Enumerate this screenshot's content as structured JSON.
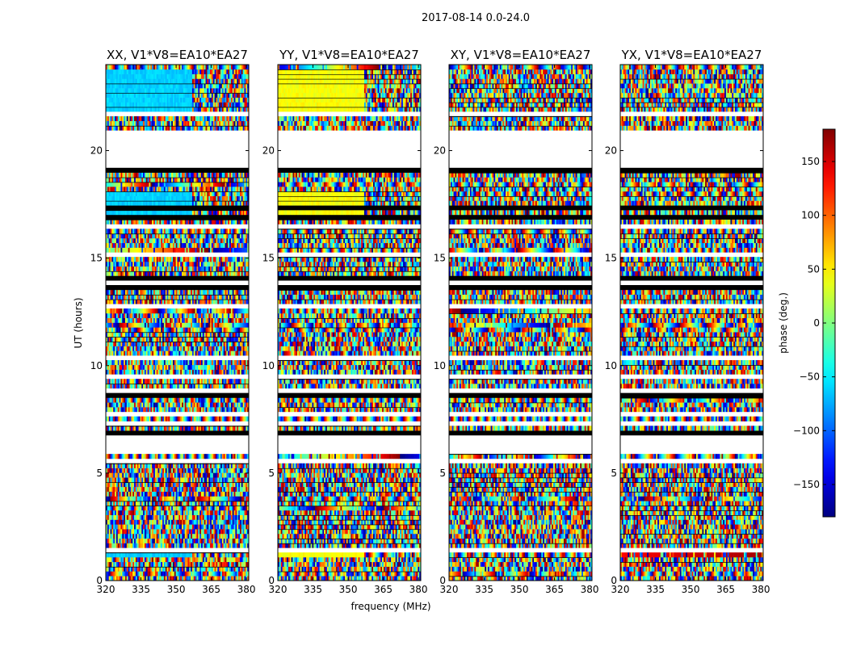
{
  "suptitle": "2017-08-14 0.0-24.0",
  "chart_data": {
    "type": "heatmap",
    "panels": [
      {
        "title": "XX, V1*V8=EA10*EA27",
        "mode": "xx"
      },
      {
        "title": "YY, V1*V8=EA10*EA27",
        "mode": "yy"
      },
      {
        "title": "XY, V1*V8=EA10*EA27",
        "mode": "xy"
      },
      {
        "title": "YX, V1*V8=EA10*EA27",
        "mode": "yx"
      }
    ],
    "xlabel": "frequency (MHz)",
    "ylabel": "UT (hours)",
    "xlim": [
      320,
      381
    ],
    "ylim": [
      0,
      24
    ],
    "xticks": [
      320,
      335,
      350,
      365,
      380
    ],
    "yticks": [
      0,
      5,
      10,
      15,
      20
    ],
    "colorbar": {
      "label": "phase (deg.)",
      "range": [
        -180,
        180
      ],
      "ticks": [
        -150,
        -100,
        -50,
        0,
        50,
        100,
        150
      ],
      "tick_labels": [
        "−150",
        "−100",
        "−50",
        "0",
        "50",
        "100",
        "150"
      ],
      "colormap": "jet"
    },
    "blank_ut_ranges": [
      [
        19.3,
        21.0
      ],
      [
        6.0,
        6.8
      ]
    ]
  }
}
